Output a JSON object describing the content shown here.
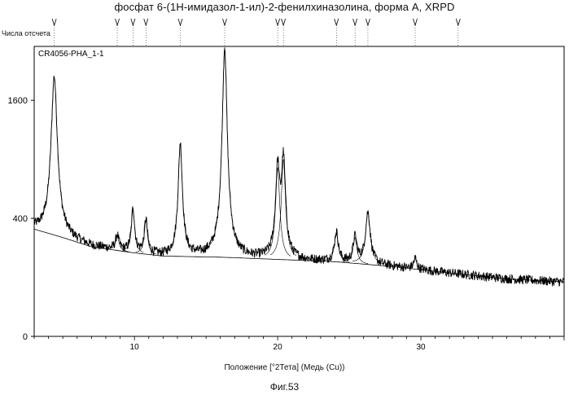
{
  "chart_data": {
    "type": "line",
    "title": "фосфат 6-(1Н-имидазол-1-ил)-2-фенилхиназолина, форма А, XRPD",
    "ylabel": "Числа отсчета",
    "xlabel": "Положение [°2Тета] (Медь (Cu))",
    "series_label": "CR4056-PHA_1-1",
    "caption": "Фиг.53",
    "x_ticks": [
      10,
      20,
      30
    ],
    "y_ticks": [
      0,
      400,
      1600
    ],
    "xlim": [
      3,
      40
    ],
    "ylim": [
      0,
      2400
    ],
    "y_scale": "sqrt",
    "grid": false,
    "line_color": "#000000",
    "peak_markers": [
      4.4,
      8.8,
      9.9,
      10.8,
      13.2,
      16.3,
      20.0,
      20.4,
      24.1,
      25.4,
      26.3,
      29.6,
      32.6
    ],
    "peaks": [
      {
        "x": 4.4,
        "y": 1940,
        "w": 0.22
      },
      {
        "x": 8.8,
        "y": 290,
        "w": 0.13
      },
      {
        "x": 9.9,
        "y": 470,
        "w": 0.12
      },
      {
        "x": 10.8,
        "y": 390,
        "w": 0.12
      },
      {
        "x": 13.2,
        "y": 1070,
        "w": 0.15
      },
      {
        "x": 16.3,
        "y": 2400,
        "w": 0.17
      },
      {
        "x": 20.0,
        "y": 820,
        "w": 0.15
      },
      {
        "x": 20.4,
        "y": 900,
        "w": 0.15
      },
      {
        "x": 24.1,
        "y": 310,
        "w": 0.15
      },
      {
        "x": 25.4,
        "y": 280,
        "w": 0.15
      },
      {
        "x": 26.3,
        "y": 440,
        "w": 0.18
      },
      {
        "x": 29.6,
        "y": 175,
        "w": 0.12
      }
    ],
    "background": [
      [
        3.0,
        330
      ],
      [
        5.0,
        280
      ],
      [
        7.0,
        230
      ],
      [
        10.0,
        200
      ],
      [
        12.0,
        185
      ],
      [
        16.0,
        180
      ],
      [
        20.0,
        170
      ],
      [
        24.0,
        160
      ],
      [
        28.0,
        140
      ],
      [
        32.0,
        115
      ],
      [
        36.0,
        95
      ],
      [
        40.0,
        85
      ]
    ]
  }
}
